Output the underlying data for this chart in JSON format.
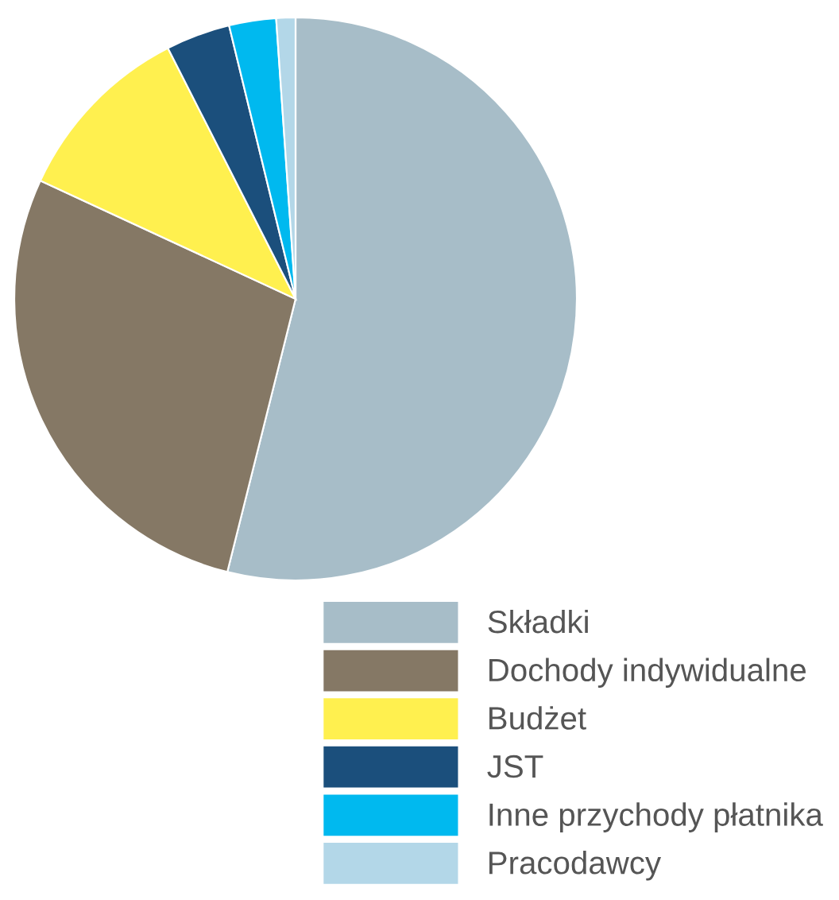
{
  "chart_data": {
    "type": "pie",
    "categories": [
      "Składki",
      "Dochody indywidualne",
      "Budżet",
      "JST",
      "Inne przychody płatnika",
      "Pracodawcy"
    ],
    "values": [
      53.9,
      28.0,
      10.6,
      3.7,
      2.7,
      1.1
    ],
    "colors": [
      "#a7bdc8",
      "#857865",
      "#fff04f",
      "#1b4f7c",
      "#00b9ef",
      "#b3d7e8"
    ],
    "legend": "bottom right"
  }
}
